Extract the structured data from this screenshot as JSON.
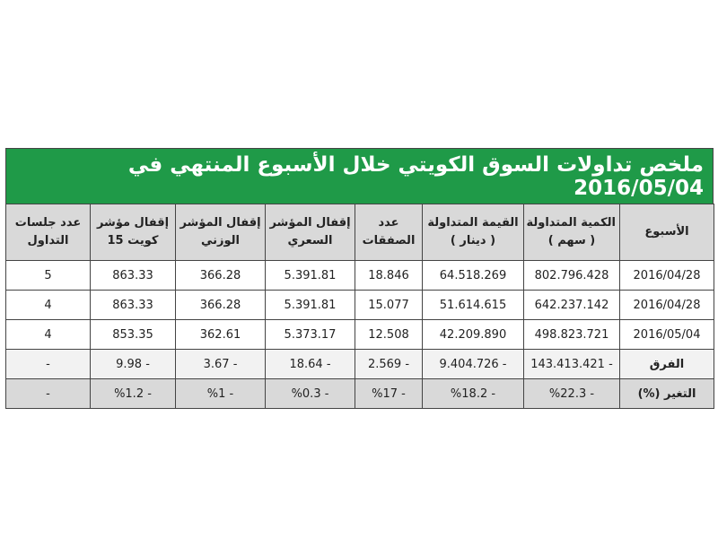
{
  "table": {
    "title": "ملخص تداولات السوق الكويتي خلال الأسبوع المنتهي في 2016/05/04",
    "headers": [
      [
        "الأسبوع"
      ],
      [
        "الكمية المتداولة",
        "( سهم )"
      ],
      [
        "القيمة المتداولة",
        "( دينار )"
      ],
      [
        "عدد",
        "الصفقات"
      ],
      [
        "إقفال المؤشر",
        "السعري"
      ],
      [
        "إقفال المؤشر",
        "الوزني"
      ],
      [
        "إقفال مؤشر",
        "كويت 15"
      ],
      [
        "عدد جلسات",
        "التداول"
      ]
    ],
    "rows": [
      [
        "2016/04/28",
        "802.796.428",
        "64.518.269",
        "18.846",
        "5.391.81",
        "366.28",
        "863.33",
        "5"
      ],
      [
        "2016/04/28",
        "642.237.142",
        "51.614.615",
        "15.077",
        "5.391.81",
        "366.28",
        "863.33",
        "4"
      ],
      [
        "2016/05/04",
        "498.823.721",
        "42.209.890",
        "12.508",
        "5.373.17",
        "362.61",
        "853.35",
        "4"
      ],
      [
        "الفرق",
        "- 143.413.421",
        "- 9.404.726",
        "- 2.569",
        "- 18.64",
        "- 3.67",
        "- 9.98",
        "-"
      ],
      [
        "التغير (%)",
        "- %22.3",
        "- %18.2",
        "- %17",
        "- %0.3",
        "- %1",
        "- %1.2",
        "-"
      ]
    ]
  }
}
